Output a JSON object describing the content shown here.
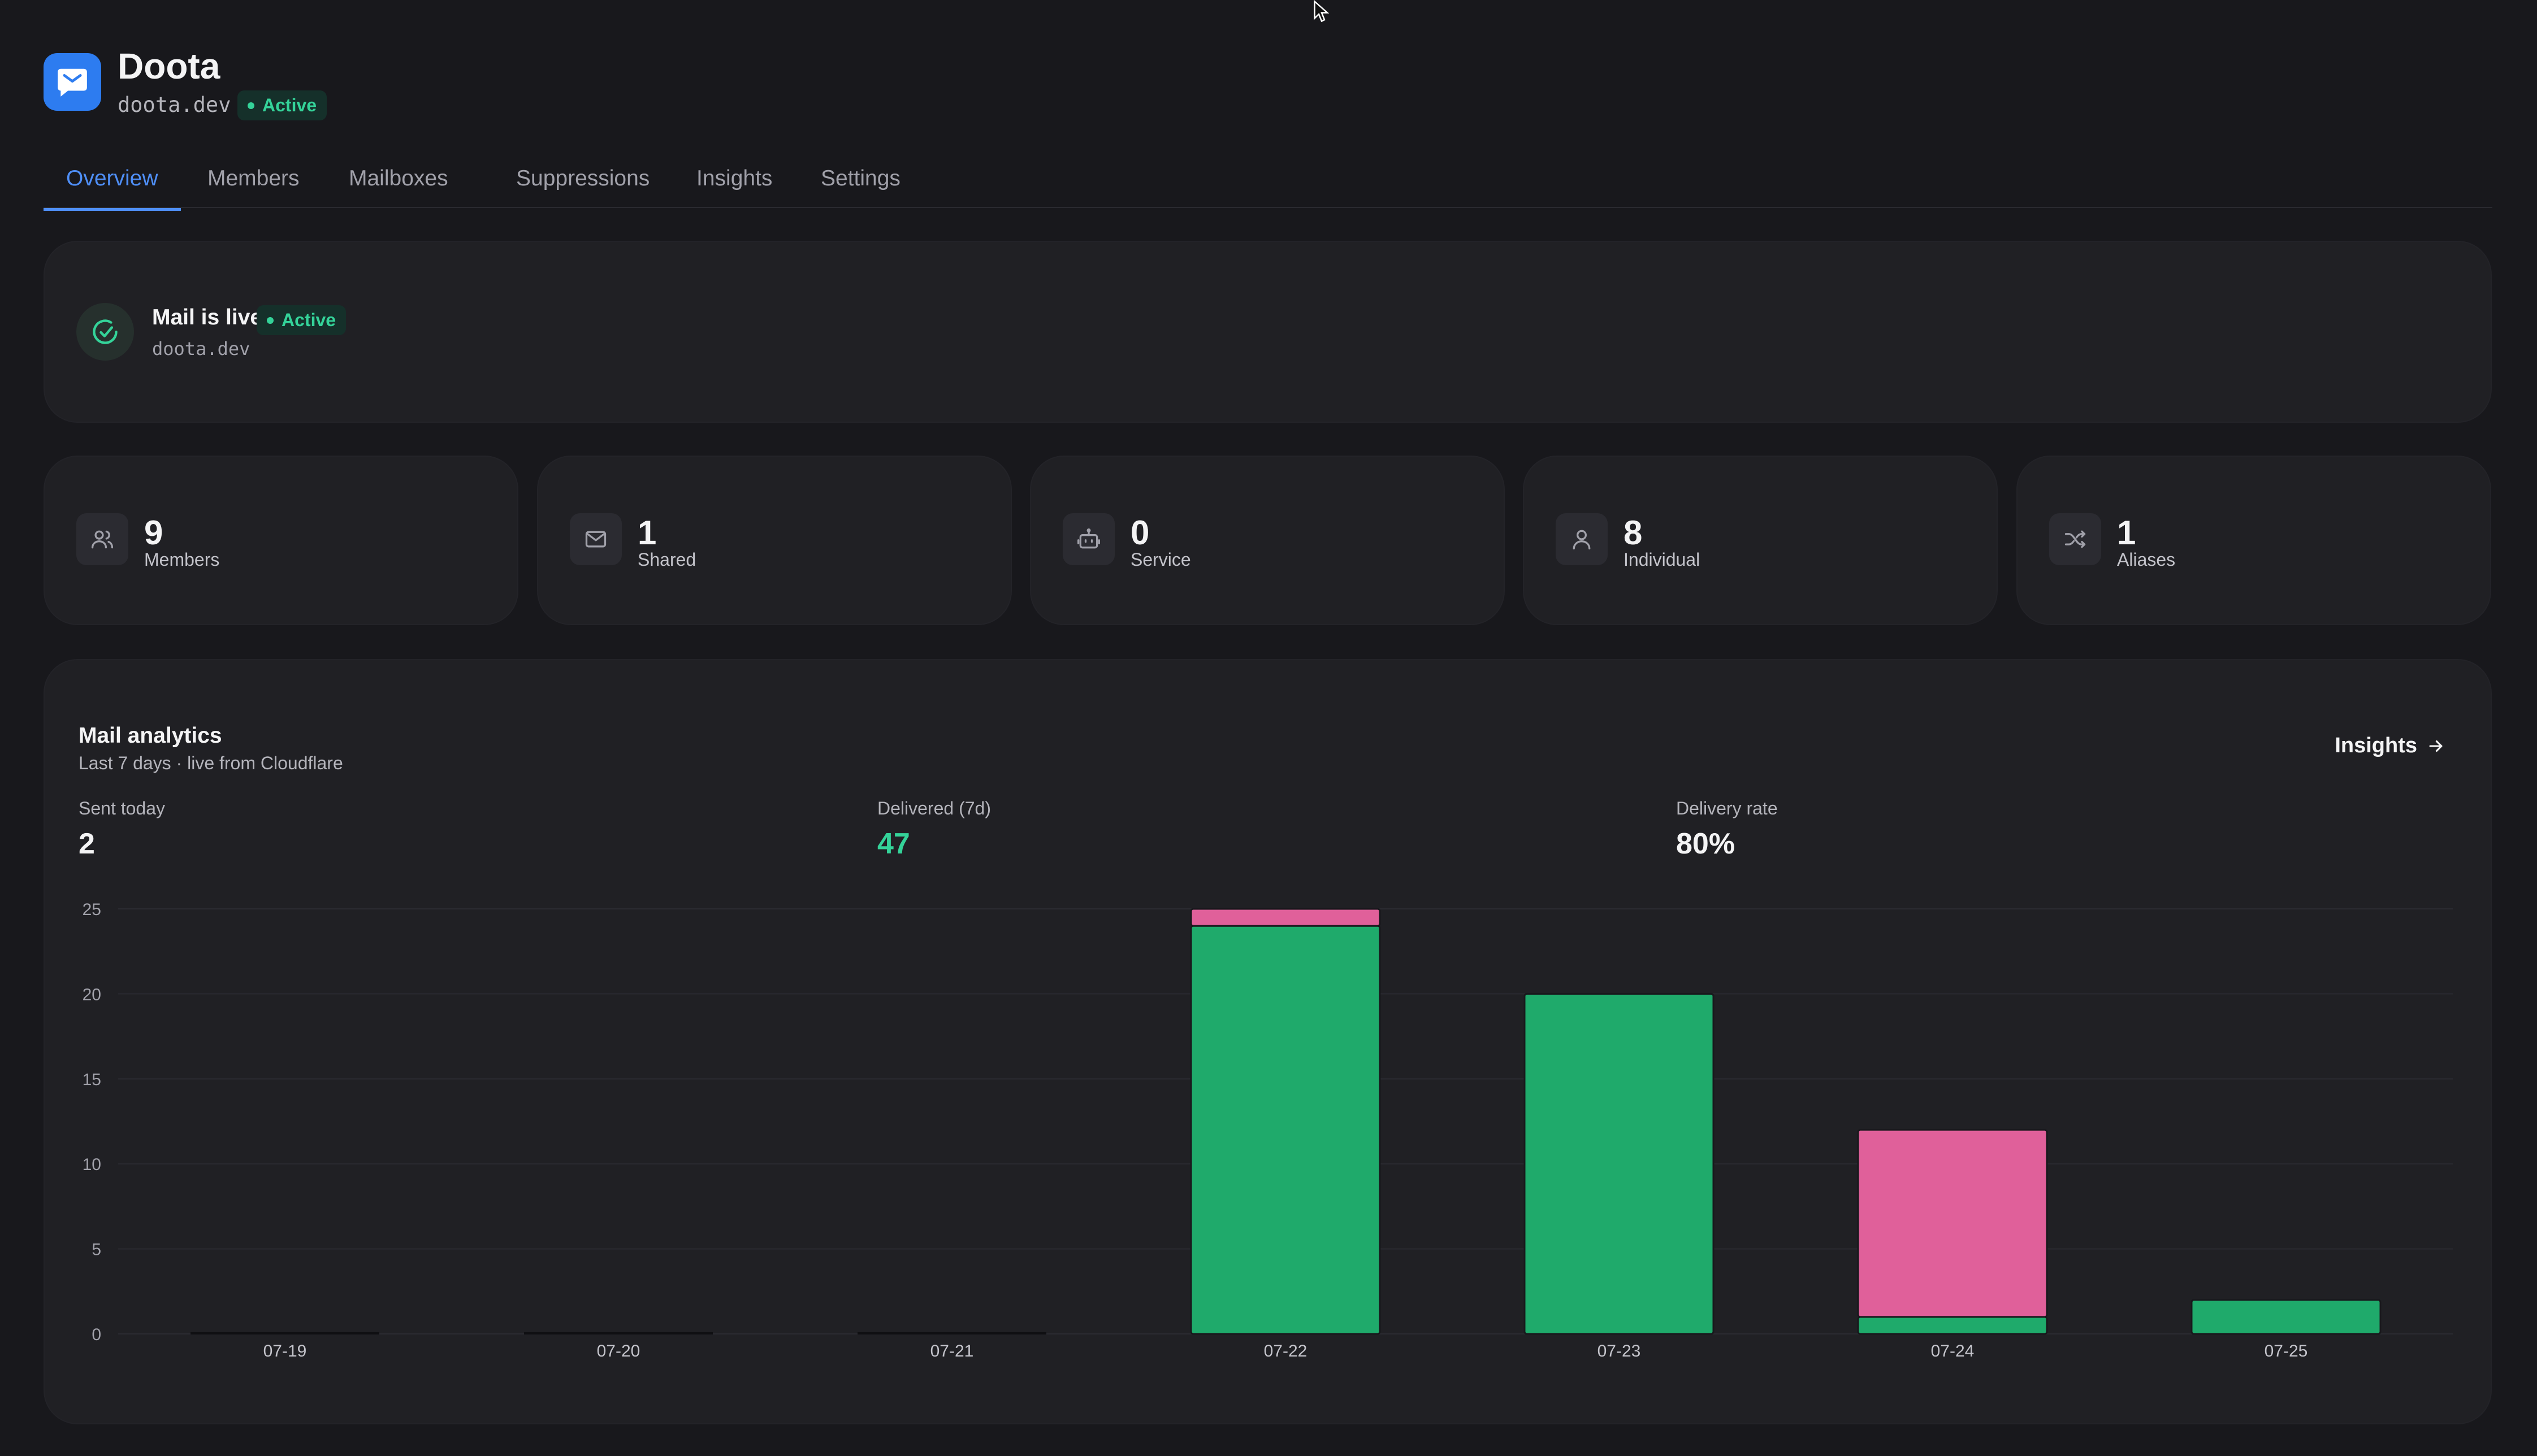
{
  "app": {
    "name": "Doota",
    "domain": "doota.dev",
    "status": "Active",
    "brand_color": "#2d7cf0"
  },
  "tabs": [
    {
      "label": "Overview",
      "active": true
    },
    {
      "label": "Members",
      "active": false
    },
    {
      "label": "Mailboxes",
      "active": false
    },
    {
      "label": "Suppressions",
      "active": false
    },
    {
      "label": "Insights",
      "active": false
    },
    {
      "label": "Settings",
      "active": false
    }
  ],
  "status_card": {
    "title": "Mail is live",
    "badge": "Active",
    "domain": "doota.dev",
    "icon": "check-circle-icon"
  },
  "stats": [
    {
      "value": "9",
      "label": "Members",
      "icon": "users-icon"
    },
    {
      "value": "1",
      "label": "Shared",
      "icon": "mail-icon"
    },
    {
      "value": "0",
      "label": "Service",
      "icon": "bot-icon"
    },
    {
      "value": "8",
      "label": "Individual",
      "icon": "user-icon"
    },
    {
      "value": "1",
      "label": "Aliases",
      "icon": "shuffle-icon"
    }
  ],
  "analytics": {
    "title": "Mail analytics",
    "subtitle": "Last 7 days · live from Cloudflare",
    "insights_link": "Insights",
    "metrics": [
      {
        "label": "Sent today",
        "value": "2"
      },
      {
        "label": "Delivered (7d)",
        "value": "47"
      },
      {
        "label": "Delivery rate",
        "value": "80%"
      }
    ]
  },
  "chart_data": {
    "type": "bar",
    "stacked": true,
    "categories": [
      "07-19",
      "07-20",
      "07-21",
      "07-22",
      "07-23",
      "07-24",
      "07-25"
    ],
    "series": [
      {
        "color": "#1faa6b",
        "values": [
          0,
          0,
          0,
          24,
          20,
          1,
          2
        ]
      },
      {
        "color": "#e0609a",
        "values": [
          0,
          0,
          0,
          1,
          0,
          11,
          0
        ]
      }
    ],
    "ylim": [
      0,
      25
    ],
    "yticks": [
      0,
      5,
      10,
      15,
      20,
      25
    ],
    "grid": true
  }
}
